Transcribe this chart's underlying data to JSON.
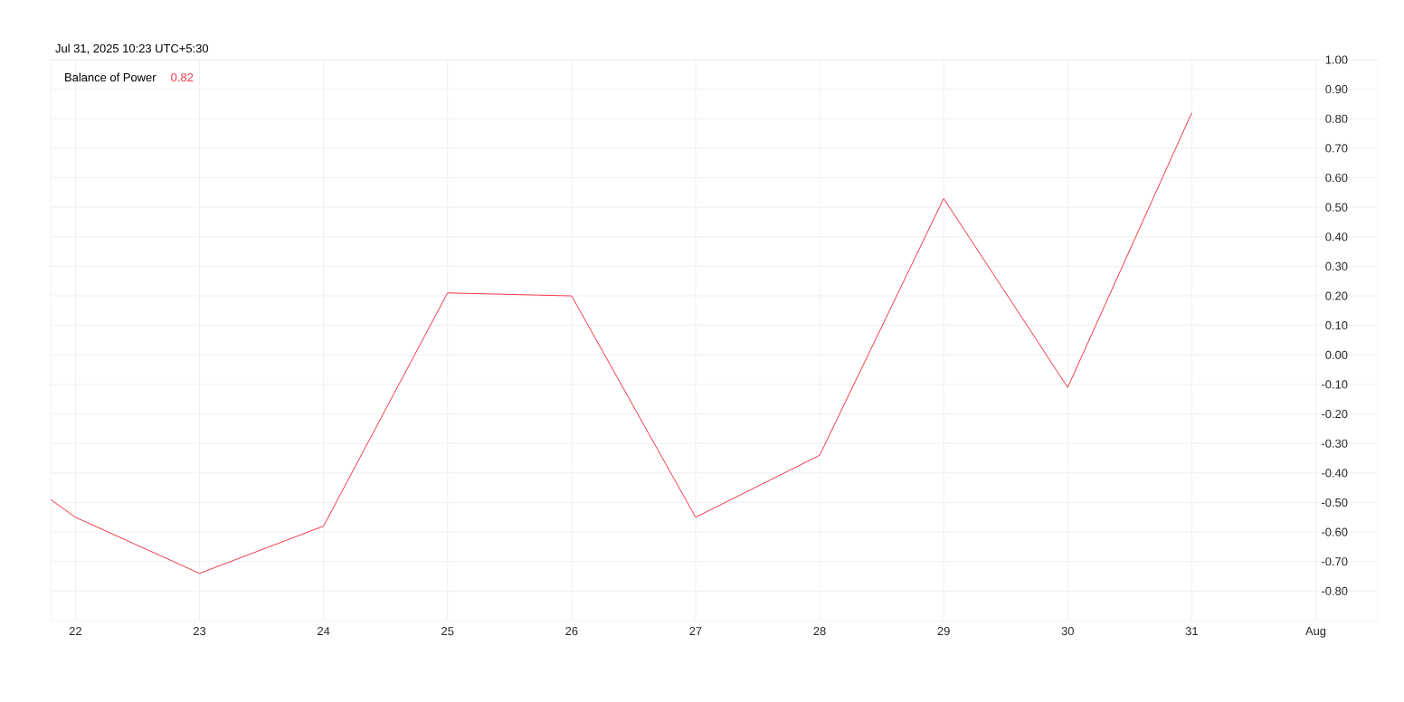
{
  "chart_data": {
    "type": "line",
    "title": "Balance of Power",
    "annotations": [
      "Jul 31, 2025 10:23 UTC+5:30",
      "0.82"
    ],
    "x": [
      21.8,
      22,
      23,
      24,
      25,
      26,
      27,
      28,
      29,
      30,
      31
    ],
    "series": [
      {
        "color": "#f23645",
        "values": [
          -0.49,
          -0.55,
          -0.74,
          -0.58,
          0.21,
          0.2,
          -0.55,
          -0.34,
          0.53,
          -0.11,
          0.82
        ]
      }
    ],
    "xlim": [
      21.8,
      32.5
    ],
    "xticks": [
      22,
      23,
      24,
      25,
      26,
      27,
      28,
      29,
      30,
      31,
      {
        "value": 32,
        "label": "Aug"
      }
    ],
    "ylim": [
      -0.9,
      1.0
    ],
    "yticks": [
      {
        "value": -0.8,
        "label": "-0.80"
      },
      {
        "value": -0.7,
        "label": "-0.70"
      },
      {
        "value": -0.6,
        "label": "-0.60"
      },
      {
        "value": -0.5,
        "label": "-0.50"
      },
      {
        "value": -0.4,
        "label": "-0.40"
      },
      {
        "value": -0.3,
        "label": "-0.30"
      },
      {
        "value": -0.2,
        "label": "-0.20"
      },
      {
        "value": -0.1,
        "label": "-0.10"
      },
      {
        "value": 0,
        "label": "0.00"
      },
      {
        "value": 0.1,
        "label": "0.10"
      },
      {
        "value": 0.2,
        "label": "0.20"
      },
      {
        "value": 0.3,
        "label": "0.30"
      },
      {
        "value": 0.4,
        "label": "0.40"
      },
      {
        "value": 0.5,
        "label": "0.50"
      },
      {
        "value": 0.6,
        "label": "0.60"
      },
      {
        "value": 0.7,
        "label": "0.70"
      },
      {
        "value": 0.8,
        "label": "0.80"
      },
      {
        "value": 0.9,
        "label": "0.90"
      },
      {
        "value": 1.0,
        "label": "1.00"
      }
    ],
    "grid": true
  }
}
